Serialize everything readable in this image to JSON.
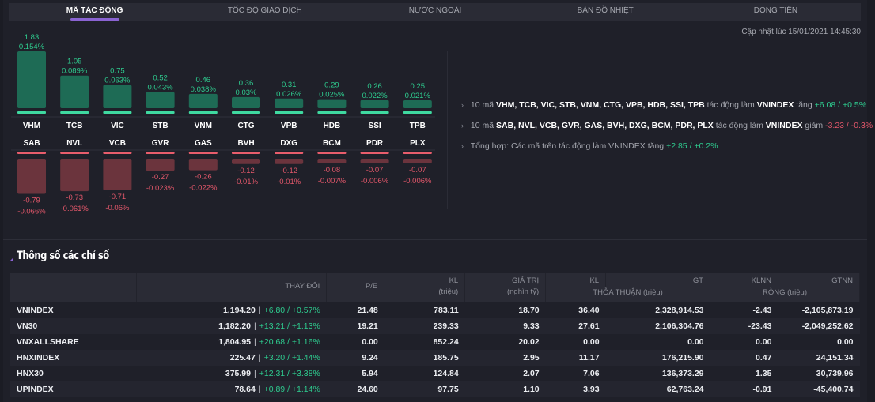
{
  "tabs": [
    {
      "label": "MÃ TÁC ĐỘNG",
      "active": true
    },
    {
      "label": "TỐC ĐỘ GIAO DỊCH",
      "active": false
    },
    {
      "label": "NƯỚC NGOÀI",
      "active": false
    },
    {
      "label": "BẢN ĐỒ NHIỆT",
      "active": false
    },
    {
      "label": "DÒNG TIỀN",
      "active": false
    }
  ],
  "updated_at": "Cập nhật lúc 15/01/2021 14:45:30",
  "colors": {
    "positive": "#2ecc8f",
    "positive_bar": "#1e6b55",
    "positive_cap": "#3fd9a0",
    "negative": "#e2576a",
    "negative_bar": "#6b343d",
    "negative_cap": "#e95d6c",
    "accent": "#8a63d2"
  },
  "chart_data": {
    "type": "bar",
    "title": "Mã tác động",
    "series": [
      {
        "name": "Tăng",
        "categories": [
          "VHM",
          "TCB",
          "VIC",
          "STB",
          "VNM",
          "CTG",
          "VPB",
          "HDB",
          "SSI",
          "TPB"
        ],
        "values": [
          1.83,
          1.05,
          0.75,
          0.52,
          0.46,
          0.36,
          0.31,
          0.29,
          0.26,
          0.25
        ],
        "value_labels": [
          "1.83",
          "1.05",
          "0.75",
          "0.52",
          "0.46",
          "0.36",
          "0.31",
          "0.29",
          "0.26",
          "0.25"
        ],
        "pct_labels": [
          "0.154%",
          "0.089%",
          "0.063%",
          "0.043%",
          "0.038%",
          "0.03%",
          "0.026%",
          "0.025%",
          "0.022%",
          "0.021%"
        ]
      },
      {
        "name": "Giảm",
        "categories": [
          "SAB",
          "NVL",
          "VCB",
          "GVR",
          "GAS",
          "BVH",
          "DXG",
          "BCM",
          "PDR",
          "PLX"
        ],
        "values": [
          -0.79,
          -0.73,
          -0.71,
          -0.27,
          -0.26,
          -0.12,
          -0.12,
          -0.08,
          -0.07,
          -0.07
        ],
        "value_labels": [
          "-0.79",
          "-0.73",
          "-0.71",
          "-0.27",
          "-0.26",
          "-0.12",
          "-0.12",
          "-0.08",
          "-0.07",
          "-0.07"
        ],
        "pct_labels": [
          "-0.066%",
          "-0.061%",
          "-0.06%",
          "-0.023%",
          "-0.022%",
          "-0.01%",
          "-0.01%",
          "-0.007%",
          "-0.006%",
          "-0.006%"
        ]
      }
    ],
    "xlabel": "",
    "ylabel": "",
    "ylim": [
      -1.83,
      1.83
    ],
    "grid": false,
    "legend": "none"
  },
  "summary": {
    "lines": [
      {
        "prefix": "10 mã",
        "codes": "VHM, TCB, VIC, STB, VNM, CTG, VPB, HDB, SSI, TPB",
        "middle": "tác động làm",
        "index": "VNINDEX",
        "verb": "tăng",
        "change": "+6.08 / +0.5%"
      },
      {
        "prefix": "10 mã",
        "codes": "SAB, NVL, VCB, GVR, GAS, BVH, DXG, BCM, PDR, PLX",
        "middle": "tác động làm",
        "index": "VNINDEX",
        "verb": "giảm",
        "change": "-3.23 / -0.3%"
      }
    ],
    "total": {
      "text": "Tổng hợp: Các mã trên tác động làm VNINDEX tăng",
      "change": "+2.85 / +0.2%"
    }
  },
  "section_title": "Thông số các chỉ số",
  "table": {
    "headers": {
      "change": "THAY ĐỔI",
      "pe": "P/E",
      "kl": "KL",
      "kl_unit": "(triệu)",
      "gt": "GIÁ TRỊ",
      "gt_unit": "(nghìn tỷ)",
      "tt_kl": "KL",
      "tt_gt": "GT",
      "tt_group": "THỎA THUẬN (triệu)",
      "nn_kl": "KLNN",
      "nn_gt": "GTNN",
      "nn_group": "RÒNG (triệu)"
    },
    "rows": [
      {
        "name": "VNINDEX",
        "price": "1,194.20",
        "change": "+6.80 / +0.57%",
        "pe": "21.48",
        "kl": "783.11",
        "gt": "18.70",
        "tt_kl": "36.40",
        "tt_gt": "2,328,914.53",
        "nn_kl": "-2.43",
        "nn_gt": "-2,105,873.19"
      },
      {
        "name": "VN30",
        "price": "1,182.20",
        "change": "+13.21 / +1.13%",
        "pe": "19.21",
        "kl": "239.33",
        "gt": "9.33",
        "tt_kl": "27.61",
        "tt_gt": "2,106,304.76",
        "nn_kl": "-23.43",
        "nn_gt": "-2,049,252.62"
      },
      {
        "name": "VNXALLSHARE",
        "price": "1,804.95",
        "change": "+20.68 / +1.16%",
        "pe": "0.00",
        "kl": "852.24",
        "gt": "20.02",
        "tt_kl": "0.00",
        "tt_gt": "0.00",
        "nn_kl": "0.00",
        "nn_gt": "0.00"
      },
      {
        "name": "HNXINDEX",
        "price": "225.47",
        "change": "+3.20 / +1.44%",
        "pe": "9.24",
        "kl": "185.75",
        "gt": "2.95",
        "tt_kl": "11.17",
        "tt_gt": "176,215.90",
        "nn_kl": "0.47",
        "nn_gt": "24,151.34"
      },
      {
        "name": "HNX30",
        "price": "375.99",
        "change": "+12.31 / +3.38%",
        "pe": "5.94",
        "kl": "124.84",
        "gt": "2.07",
        "tt_kl": "7.06",
        "tt_gt": "136,373.29",
        "nn_kl": "1.35",
        "nn_gt": "30,739.96"
      },
      {
        "name": "UPINDEX",
        "price": "78.64",
        "change": "+0.89 / +1.14%",
        "pe": "24.60",
        "kl": "97.75",
        "gt": "1.10",
        "tt_kl": "3.93",
        "tt_gt": "62,763.24",
        "nn_kl": "-0.91",
        "nn_gt": "-45,400.74"
      }
    ]
  }
}
